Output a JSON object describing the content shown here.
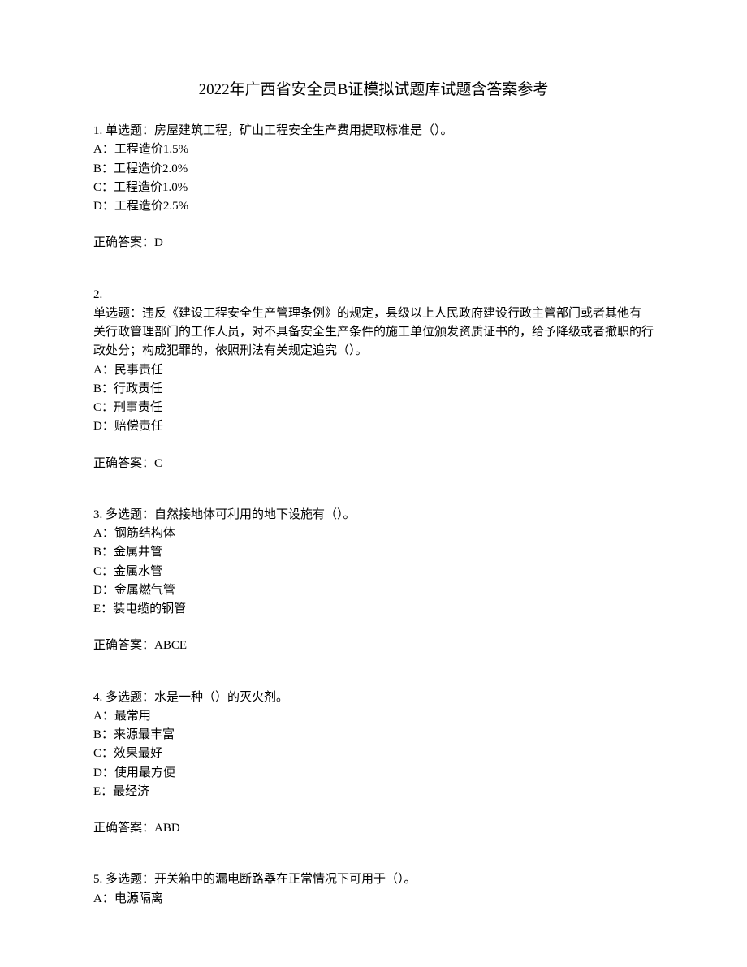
{
  "title": "2022年广西省安全员B证模拟试题库试题含答案参考",
  "questions": [
    {
      "number": "1.",
      "type_prefix": "单选题：",
      "stem": "房屋建筑工程，矿山工程安全生产费用提取标准是（）。",
      "options": [
        "A：工程造价1.5%",
        "B：工程造价2.0%",
        "C：工程造价1.0%",
        "D：工程造价2.5%"
      ],
      "answer_label": "正确答案：",
      "answer": "D"
    },
    {
      "number": "2.",
      "type_prefix": "单选题：",
      "stem": "违反《建设工程安全生产管理条例》的规定，县级以上人民政府建设行政主管部门或者其他有关行政管理部门的工作人员，对不具备安全生产条件的施工单位颁发资质证书的，给予降级或者撤职的行政处分；构成犯罪的，依照刑法有关规定追究（）。",
      "options": [
        "A：民事责任",
        "B：行政责任",
        "C：刑事责任",
        "D：赔偿责任"
      ],
      "answer_label": "正确答案：",
      "answer": "C"
    },
    {
      "number": "3.",
      "type_prefix": "多选题：",
      "stem": "自然接地体可利用的地下设施有（）。",
      "options": [
        "A：钢筋结构体",
        "B：金属井管",
        "C：金属水管",
        "D：金属燃气管",
        "E：装电缆的钢管"
      ],
      "answer_label": "正确答案：",
      "answer": "ABCE"
    },
    {
      "number": "4.",
      "type_prefix": "多选题：",
      "stem": "水是一种（）的灭火剂。",
      "options": [
        "A：最常用",
        "B：来源最丰富",
        "C：效果最好",
        "D：使用最方便",
        "E：最经济"
      ],
      "answer_label": "正确答案：",
      "answer": "ABD"
    },
    {
      "number": "5.",
      "type_prefix": "多选题：",
      "stem": "开关箱中的漏电断路器在正常情况下可用于（）。",
      "options": [
        "A：电源隔离"
      ],
      "answer_label": "",
      "answer": ""
    }
  ]
}
